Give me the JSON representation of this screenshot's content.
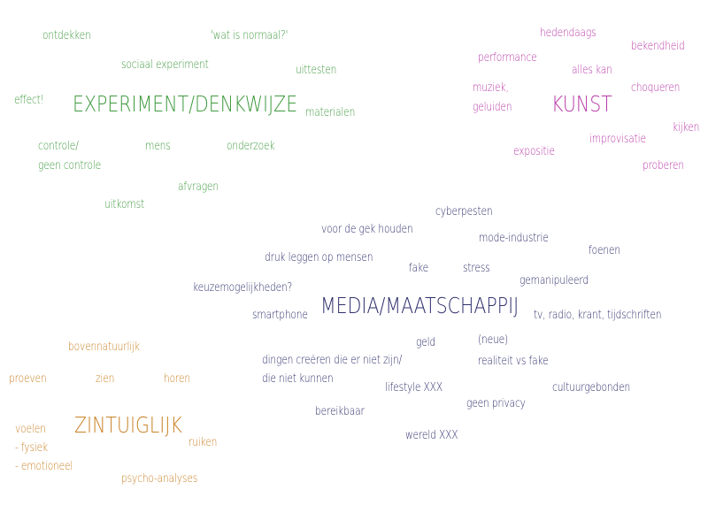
{
  "colors": {
    "experiment": "#3f9a3f",
    "kunst": "#b83aa8",
    "media": "#2e2f6c",
    "zintuiglijk": "#c98227"
  },
  "clusters": {
    "experiment": {
      "title": "EXPERIMENT/DENKWIJZE",
      "words": [
        "ontdekken",
        "'wat is normaal?'",
        "sociaal experiment",
        "uittesten",
        "effect!",
        "materialen",
        "controle/",
        "geen controle",
        "mens",
        "onderzoek",
        "afvragen",
        "uitkomst"
      ]
    },
    "kunst": {
      "title": "KUNST",
      "words": [
        "hedendaags",
        "performance",
        "bekendheid",
        "alles kan",
        "muziek,",
        "geluiden",
        "choqueren",
        "kijken",
        "improvisatie",
        "expositie",
        "proberen"
      ]
    },
    "media": {
      "title": "MEDIA/MAATSCHAPPIJ",
      "words": [
        "cyberpesten",
        "voor de gek houden",
        "mode-industrie",
        "foenen",
        "druk leggen op mensen",
        "fake",
        "stress",
        "gemanipuleerd",
        "keuzemogelijkheden?",
        "smartphone",
        "tv, radio, krant, tijdschriften",
        "geld",
        "(neue)",
        "dingen creëren die er niet zijn/",
        "die niet kunnen",
        "realiteit vs fake",
        "lifestyle XXX",
        "cultuurgebonden",
        "geen privacy",
        "bereikbaar",
        "wereld XXX"
      ]
    },
    "zintuiglijk": {
      "title": "ZINTUIGLIJK",
      "words": [
        "bovennatuurlijk",
        "proeven",
        "zien",
        "horen",
        "voelen",
        "- fysiek",
        "- emotioneel",
        "ruiken",
        "psycho-analyses"
      ]
    }
  }
}
